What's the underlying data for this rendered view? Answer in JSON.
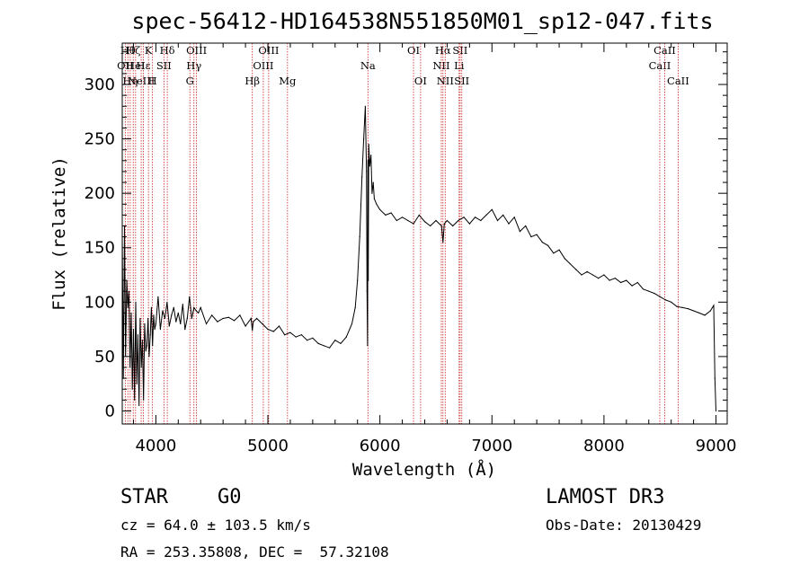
{
  "chart_data": {
    "type": "line",
    "title": "spec-56412-HD164538N551850M01_sp12-047.fits",
    "xlabel": "Wavelength (Å)",
    "ylabel": "Flux (relative)",
    "xlim": [
      3700,
      9100
    ],
    "ylim": [
      -12,
      338
    ],
    "x_ticks": [
      4000,
      5000,
      6000,
      7000,
      8000,
      9000
    ],
    "y_ticks": [
      0,
      50,
      100,
      150,
      200,
      250,
      300
    ],
    "grid": false,
    "series": [
      {
        "x": [
          3700,
          3710,
          3720,
          3730,
          3740,
          3750,
          3760,
          3770,
          3780,
          3790,
          3800,
          3810,
          3820,
          3830,
          3840,
          3850,
          3860,
          3870,
          3880,
          3890,
          3900,
          3910,
          3920,
          3930,
          3940,
          3950,
          3960,
          3970,
          3980,
          3990,
          4000,
          4020,
          4040,
          4060,
          4080,
          4100,
          4120,
          4140,
          4160,
          4180,
          4200,
          4220,
          4240,
          4260,
          4280,
          4300,
          4320,
          4340,
          4360,
          4380,
          4400,
          4450,
          4500,
          4550,
          4600,
          4650,
          4700,
          4750,
          4800,
          4850,
          4861,
          4870,
          4900,
          4950,
          5000,
          5050,
          5100,
          5150,
          5200,
          5250,
          5300,
          5350,
          5400,
          5450,
          5500,
          5550,
          5600,
          5650,
          5700,
          5750,
          5780,
          5800,
          5820,
          5840,
          5855,
          5870,
          5880,
          5885,
          5890,
          5893,
          5896,
          5900,
          5910,
          5920,
          5930,
          5940,
          5950,
          5970,
          6000,
          6050,
          6100,
          6150,
          6200,
          6250,
          6300,
          6350,
          6400,
          6450,
          6500,
          6550,
          6563,
          6575,
          6600,
          6650,
          6700,
          6750,
          6800,
          6850,
          6900,
          6950,
          7000,
          7050,
          7100,
          7150,
          7200,
          7250,
          7300,
          7350,
          7400,
          7450,
          7500,
          7550,
          7600,
          7650,
          7700,
          7750,
          7800,
          7850,
          7900,
          7950,
          8000,
          8050,
          8100,
          8150,
          8200,
          8250,
          8300,
          8350,
          8400,
          8450,
          8500,
          8550,
          8600,
          8650,
          8700,
          8750,
          8800,
          8850,
          8900,
          8950,
          8980,
          8990,
          9000
        ],
        "y": [
          160,
          30,
          170,
          50,
          120,
          95,
          110,
          40,
          90,
          20,
          75,
          10,
          100,
          25,
          70,
          5,
          85,
          40,
          65,
          10,
          80,
          55,
          60,
          85,
          50,
          70,
          95,
          60,
          88,
          75,
          80,
          105,
          75,
          92,
          85,
          100,
          78,
          88,
          95,
          82,
          90,
          80,
          98,
          75,
          85,
          105,
          85,
          95,
          92,
          90,
          95,
          80,
          88,
          82,
          85,
          86,
          83,
          88,
          78,
          85,
          74,
          82,
          85,
          80,
          75,
          73,
          78,
          70,
          72,
          68,
          70,
          65,
          67,
          62,
          60,
          58,
          65,
          62,
          68,
          80,
          95,
          120,
          160,
          215,
          250,
          280,
          220,
          110,
          60,
          230,
          120,
          245,
          225,
          235,
          200,
          210,
          195,
          190,
          185,
          180,
          182,
          175,
          178,
          175,
          172,
          180,
          174,
          170,
          175,
          170,
          155,
          172,
          175,
          170,
          175,
          178,
          172,
          178,
          175,
          180,
          185,
          175,
          180,
          172,
          178,
          165,
          170,
          160,
          162,
          155,
          152,
          145,
          148,
          140,
          135,
          130,
          125,
          128,
          125,
          122,
          125,
          120,
          122,
          118,
          120,
          115,
          118,
          112,
          110,
          108,
          105,
          102,
          100,
          96,
          95,
          94,
          92,
          90,
          88,
          92,
          97,
          30,
          0
        ]
      }
    ],
    "line_markers": [
      {
        "w": 3727,
        "label": "OII",
        "row": 2
      },
      {
        "w": 3750,
        "label": "Hθ",
        "row": 1
      },
      {
        "w": 3771,
        "label": "Hη",
        "row": 3
      },
      {
        "w": 3798,
        "label": "Hζ",
        "row": 1
      },
      {
        "w": 3819,
        "label": "HeI",
        "row": 2
      },
      {
        "w": 3869,
        "label": "NeIII",
        "row": 3
      },
      {
        "w": 3889,
        "label": "Hε",
        "row": 2
      },
      {
        "w": 3934,
        "label": "K",
        "row": 1
      },
      {
        "w": 3970,
        "label": "H",
        "row": 3
      },
      {
        "w": 4072,
        "label": "SII",
        "row": 2
      },
      {
        "w": 4102,
        "label": "Hδ",
        "row": 1
      },
      {
        "w": 4304,
        "label": "G",
        "row": 3
      },
      {
        "w": 4340,
        "label": "Hγ",
        "row": 2
      },
      {
        "w": 4363,
        "label": "OIII",
        "row": 1
      },
      {
        "w": 4861,
        "label": "Hβ",
        "row": 3
      },
      {
        "w": 4959,
        "label": "OIII",
        "row": 2
      },
      {
        "w": 5007,
        "label": "OIII",
        "row": 1
      },
      {
        "w": 5175,
        "label": "Mg",
        "row": 3
      },
      {
        "w": 5893,
        "label": "Na",
        "row": 2
      },
      {
        "w": 6300,
        "label": "OI",
        "row": 1
      },
      {
        "w": 6363,
        "label": "OI",
        "row": 3
      },
      {
        "w": 6548,
        "label": "NII",
        "row": 2
      },
      {
        "w": 6563,
        "label": "Hα",
        "row": 1
      },
      {
        "w": 6583,
        "label": "NII",
        "row": 3
      },
      {
        "w": 6707,
        "label": "Li",
        "row": 2
      },
      {
        "w": 6716,
        "label": "SII",
        "row": 1
      },
      {
        "w": 6731,
        "label": "SII",
        "row": 3
      },
      {
        "w": 8498,
        "label": "CaII",
        "row": 2
      },
      {
        "w": 8542,
        "label": "CaII",
        "row": 1
      },
      {
        "w": 8662,
        "label": "CaII",
        "row": 3
      }
    ]
  },
  "info": {
    "object_class": "STAR",
    "subclass": "G0",
    "survey": "LAMOST DR3",
    "redshift": "cz = 64.0 ± 103.5 km/s",
    "obs_date": "Obs-Date: 20130429",
    "coords": "RA = 253.35808, DEC =  57.32108"
  }
}
